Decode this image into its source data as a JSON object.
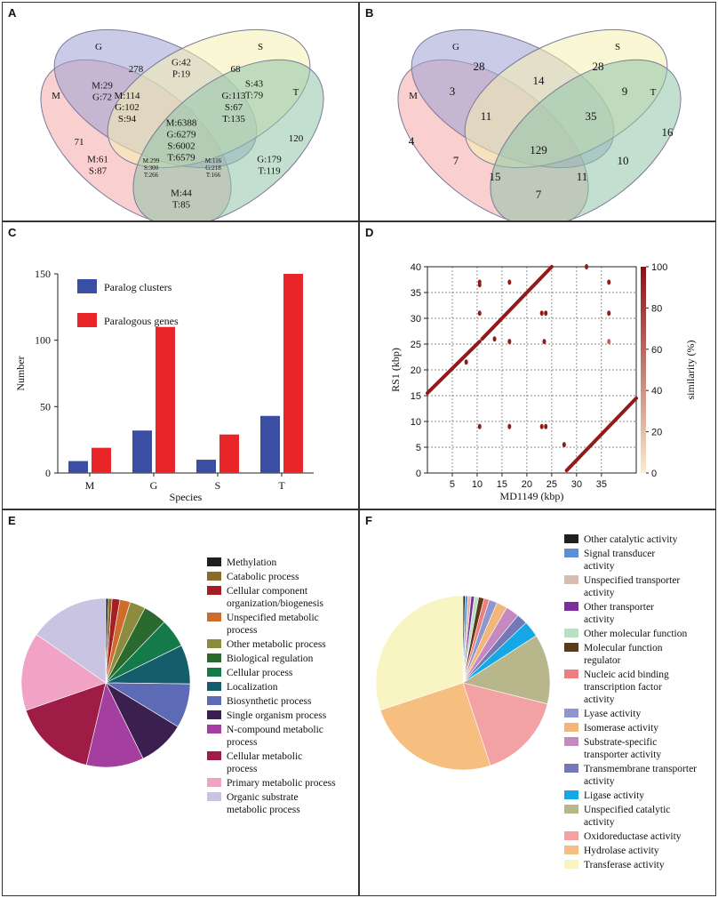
{
  "panels": {
    "A": {
      "label": "A"
    },
    "B": {
      "label": "B"
    },
    "C": {
      "label": "C"
    },
    "D": {
      "label": "D"
    },
    "E": {
      "label": "E"
    },
    "F": {
      "label": "F"
    }
  },
  "chart_data": [
    {
      "panel": "A",
      "type": "venn",
      "sets": [
        "M",
        "G",
        "S",
        "T"
      ],
      "set_colors": {
        "M": "#f4a7a9",
        "G": "#9ea2d4",
        "S": "#f6f1b0",
        "T": "#8fc4a8"
      },
      "regions": [
        {
          "sets": "G",
          "lines": [
            "278"
          ]
        },
        {
          "sets": "S",
          "lines": [
            "68"
          ]
        },
        {
          "sets": "M",
          "lines": [
            "71"
          ]
        },
        {
          "sets": "T",
          "lines": [
            "120"
          ]
        },
        {
          "sets": "M,G",
          "lines": [
            "M:29",
            "G:72"
          ]
        },
        {
          "sets": "G,S",
          "lines": [
            "G:42",
            "P:19"
          ]
        },
        {
          "sets": "S,T",
          "lines": [
            "S:43",
            "T:79"
          ]
        },
        {
          "sets": "M,G,S",
          "lines": [
            "M:114",
            "G:102",
            "S:94"
          ]
        },
        {
          "sets": "G,S,T",
          "lines": [
            "G:113",
            "S:67",
            "T:135"
          ]
        },
        {
          "sets": "M,G,S,T",
          "lines": [
            "M:6388",
            "G:6279",
            "S:6002",
            "T:6579"
          ]
        },
        {
          "sets": "M,S",
          "lines": [
            "M:61",
            "S:87"
          ]
        },
        {
          "sets": "G,T",
          "lines": [
            "G:179",
            "T:119"
          ]
        },
        {
          "sets": "M,S,T",
          "lines": [
            "M:299",
            "S:300",
            "T:266"
          ]
        },
        {
          "sets": "M,G,T",
          "lines": [
            "M:116",
            "G:218",
            "T:166"
          ]
        },
        {
          "sets": "M,T",
          "lines": [
            "M:44",
            "T:85"
          ]
        }
      ]
    },
    {
      "panel": "B",
      "type": "venn",
      "sets": [
        "M",
        "G",
        "S",
        "T"
      ],
      "regions": [
        {
          "sets": "G",
          "value": "28"
        },
        {
          "sets": "S",
          "value": "28"
        },
        {
          "sets": "M",
          "value": "4"
        },
        {
          "sets": "T",
          "value": "16"
        },
        {
          "sets": "M,G",
          "value": "3"
        },
        {
          "sets": "G,S",
          "value": "14"
        },
        {
          "sets": "S,T",
          "value": "9"
        },
        {
          "sets": "M,G,S",
          "value": "11"
        },
        {
          "sets": "G,S,T",
          "value": "35"
        },
        {
          "sets": "M,G,S,T",
          "value": "129"
        },
        {
          "sets": "M,S",
          "value": "7"
        },
        {
          "sets": "G,T",
          "value": "10"
        },
        {
          "sets": "M,S,T",
          "value": "15"
        },
        {
          "sets": "M,G,T",
          "value": "11"
        },
        {
          "sets": "M,T",
          "value": "7"
        }
      ]
    },
    {
      "panel": "C",
      "type": "bar",
      "categories": [
        "M",
        "G",
        "S",
        "T"
      ],
      "series": [
        {
          "name": "Paralog clusters",
          "color": "#3a4fa3",
          "values": [
            9,
            32,
            10,
            43
          ]
        },
        {
          "name": "Paralogous genes",
          "color": "#e8262a",
          "values": [
            19,
            110,
            29,
            150
          ]
        }
      ],
      "xlabel": "Species",
      "ylabel": "Number",
      "ylim": [
        0,
        150
      ],
      "yticks": [
        "0",
        "50",
        "100",
        "150"
      ],
      "legend": "top-left"
    },
    {
      "panel": "D",
      "type": "scatter",
      "xlabel": "MD1149 (kbp)",
      "ylabel": "RS1 (kbp)",
      "xlim": [
        0,
        42
      ],
      "ylim": [
        0,
        40
      ],
      "xticks": [
        "5",
        "10",
        "15",
        "20",
        "25",
        "30",
        "35"
      ],
      "yticks": [
        "0",
        "5",
        "10",
        "15",
        "20",
        "25",
        "30",
        "35",
        "40"
      ],
      "grid": true,
      "colorbar": {
        "label": "similarity (%)",
        "ticks": [
          "0",
          "20",
          "40",
          "60",
          "80",
          "100"
        ],
        "low_color": "#fbebcf",
        "high_color": "#8b1010"
      },
      "segments": [
        {
          "x": [
            0,
            10.5
          ],
          "y": [
            15.5,
            25.5
          ],
          "similarity": 95
        },
        {
          "x": [
            11,
            25
          ],
          "y": [
            26,
            40
          ],
          "similarity": 95
        },
        {
          "x": [
            28,
            42
          ],
          "y": [
            0.5,
            14.5
          ],
          "similarity": 95
        }
      ],
      "points": [
        {
          "x": 10.5,
          "y": 37,
          "similarity": 95
        },
        {
          "x": 10.5,
          "y": 36.5,
          "similarity": 95
        },
        {
          "x": 16.5,
          "y": 37,
          "similarity": 95
        },
        {
          "x": 36.5,
          "y": 37,
          "similarity": 95
        },
        {
          "x": 10.5,
          "y": 31,
          "similarity": 95
        },
        {
          "x": 23,
          "y": 31,
          "similarity": 95
        },
        {
          "x": 23.8,
          "y": 31,
          "similarity": 95
        },
        {
          "x": 36.5,
          "y": 31,
          "similarity": 95
        },
        {
          "x": 13.5,
          "y": 26,
          "similarity": 95
        },
        {
          "x": 16.5,
          "y": 25.5,
          "similarity": 95
        },
        {
          "x": 23.5,
          "y": 25.5,
          "similarity": 95
        },
        {
          "x": 36.5,
          "y": 25.5,
          "similarity": 60
        },
        {
          "x": 10.5,
          "y": 9,
          "similarity": 95
        },
        {
          "x": 16.5,
          "y": 9,
          "similarity": 95
        },
        {
          "x": 23,
          "y": 9,
          "similarity": 95
        },
        {
          "x": 23.8,
          "y": 9,
          "similarity": 95
        },
        {
          "x": 27.5,
          "y": 5.5,
          "similarity": 95
        },
        {
          "x": 32,
          "y": 40,
          "similarity": 95
        },
        {
          "x": 7.8,
          "y": 21.5,
          "similarity": 95
        }
      ]
    },
    {
      "panel": "E",
      "type": "pie",
      "slices": [
        {
          "label": "Methylation",
          "color": "#1f1f1f",
          "value": 0.5
        },
        {
          "label": "Catabolic process",
          "color": "#8a6b28",
          "value": 0.7
        },
        {
          "label": "Cellular component organization/biogenesis",
          "color": "#a61e23",
          "value": 1.5
        },
        {
          "label": "Unspecified metabolic process",
          "color": "#d06c2b",
          "value": 2
        },
        {
          "label": "Other metabolic process",
          "color": "#8c8c3e",
          "value": 3
        },
        {
          "label": "Biological regulation",
          "color": "#2b6a2e",
          "value": 4.5
        },
        {
          "label": "Cellular process",
          "color": "#157a4a",
          "value": 5.5
        },
        {
          "label": "Localization",
          "color": "#155d6a",
          "value": 7.5
        },
        {
          "label": "Biosynthetic process",
          "color": "#5d6ab5",
          "value": 8.5
        },
        {
          "label": "Single organism process",
          "color": "#3b1f4f",
          "value": 9
        },
        {
          "label": "N-compound metabolic process",
          "color": "#a43e9f",
          "value": 11
        },
        {
          "label": "Cellular metabolic process",
          "color": "#9e1c45",
          "value": 16
        },
        {
          "label": "Primary metabolic process",
          "color": "#f1a3c6",
          "value": 15
        },
        {
          "label": "Organic substrate metabolic process",
          "color": "#c8c4e2",
          "value": 15.3
        }
      ],
      "legend": "right"
    },
    {
      "panel": "F",
      "type": "pie",
      "slices": [
        {
          "label": "Other catalytic activity",
          "color": "#1f1f1f",
          "value": 0.4
        },
        {
          "label": "Signal transducer activity",
          "color": "#5b8fd6",
          "value": 0.5
        },
        {
          "label": "Unspecified transporter activity",
          "color": "#d9bcb0",
          "value": 0.6
        },
        {
          "label": "Other transporter activity",
          "color": "#7a2f9a",
          "value": 0.6
        },
        {
          "label": "Other molecular function",
          "color": "#b8e0c1",
          "value": 0.8
        },
        {
          "label": "Molecular function regulator",
          "color": "#5a3a18",
          "value": 1
        },
        {
          "label": "Nucleic acid binding transcription factor activity",
          "color": "#ef7e7e",
          "value": 1
        },
        {
          "label": "Lyase activity",
          "color": "#8e98cf",
          "value": 1.5
        },
        {
          "label": "Isomerase activity",
          "color": "#f3b67a",
          "value": 2
        },
        {
          "label": "Substrate-specific transporter activity",
          "color": "#c489c0",
          "value": 2.5
        },
        {
          "label": "Transmembrane transporter activity",
          "color": "#7279b5",
          "value": 2
        },
        {
          "label": "Ligase activity",
          "color": "#14a9e6",
          "value": 3
        },
        {
          "label": "Unspecified catalytic activity",
          "color": "#b8b78c",
          "value": 13
        },
        {
          "label": "Oxidoreductase activity",
          "color": "#f3a2a3",
          "value": 16
        },
        {
          "label": "Hydrolase activity",
          "color": "#f6bf7f",
          "value": 25
        },
        {
          "label": "Transferase activity",
          "color": "#f8f5c2",
          "value": 30.1
        }
      ],
      "legend": "right"
    }
  ]
}
